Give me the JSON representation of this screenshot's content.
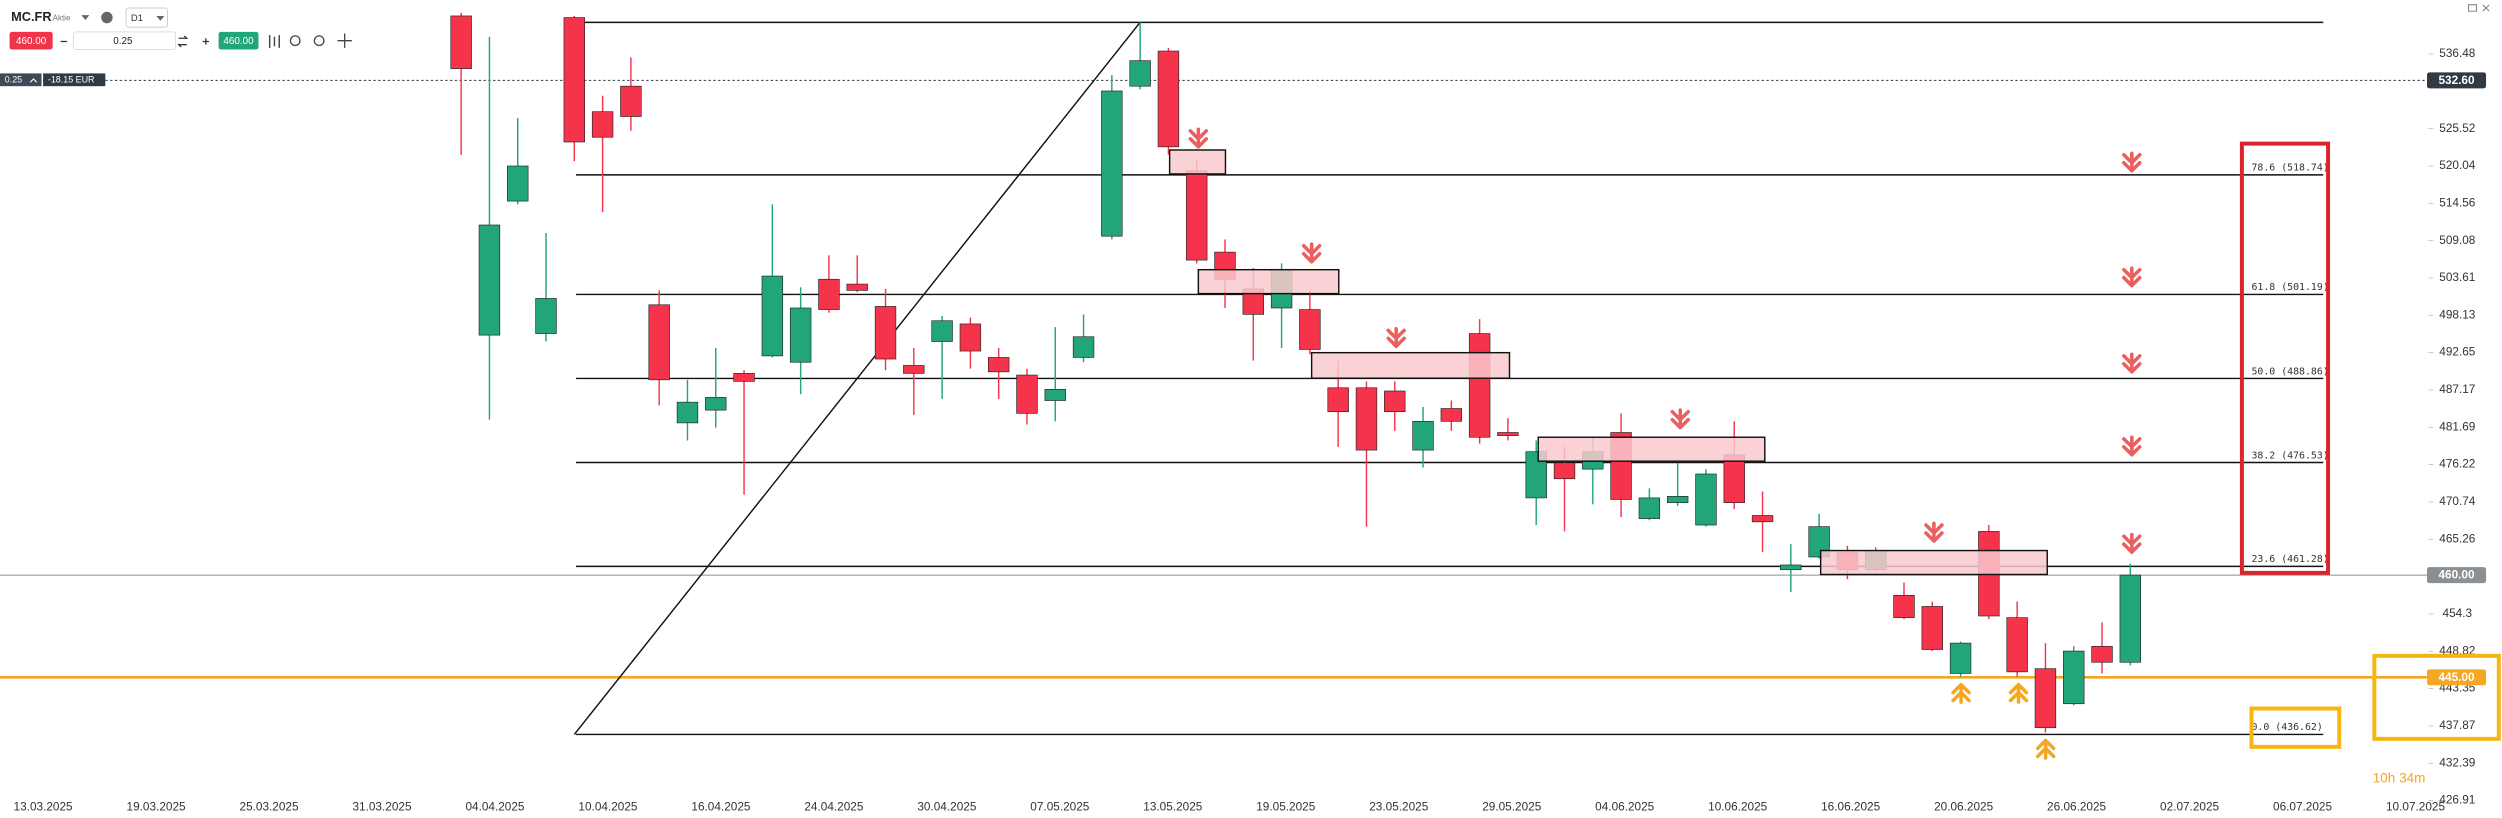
{
  "header": {
    "symbol": "MC.FR",
    "asset_type": "Aktie",
    "timeframe": "D1",
    "sell_price": "460.00",
    "quantity": "0.25",
    "buy_price": "460.00",
    "position_size": "0.25",
    "position_pl": "-18.15 EUR",
    "timer": "10h 34m"
  },
  "chart_data": {
    "type": "candlestick",
    "x_labels": [
      "13.03.2025",
      "19.03.2025",
      "25.03.2025",
      "31.03.2025",
      "04.04.2025",
      "10.04.2025",
      "16.04.2025",
      "24.04.2025",
      "30.04.2025",
      "07.05.2025",
      "13.05.2025",
      "19.05.2025",
      "23.05.2025",
      "29.05.2025",
      "04.06.2025",
      "10.06.2025",
      "16.06.2025",
      "20.06.2025",
      "26.06.2025",
      "02.07.2025",
      "06.07.2025",
      "10.07.2025"
    ],
    "candles": {
      "open": [
        542.06,
        495.22,
        514.89,
        495.45,
        541.82,
        528.01,
        531.75,
        499.67,
        482.34,
        484.21,
        489.6,
        492.17,
        491.24,
        503.42,
        502.71,
        499.43,
        490.77,
        494.28,
        496.86,
        491.94,
        489.36,
        485.62,
        491.94,
        509.74,
        531.75,
        536.91,
        519.34,
        507.4,
        502.01,
        499.2,
        498.97,
        487.49,
        487.49,
        487.02,
        478.35,
        484.45,
        495.45,
        480.93,
        471.33,
        476.48,
        475.55,
        480.93,
        468.29,
        470.63,
        467.35,
        477.65,
        468.75,
        460.79,
        462.66,
        463.37,
        460.79,
        457.04,
        455.4,
        445.57,
        466.41,
        453.76,
        446.27,
        441.12,
        449.55,
        447.21
      ],
      "high": [
        542.53,
        539.01,
        527.07,
        510.21,
        542.06,
        530.35,
        535.97,
        501.78,
        488.66,
        493.34,
        490.07,
        514.42,
        502.24,
        506.93,
        506.93,
        502.01,
        493.34,
        498.03,
        497.79,
        493.34,
        490.3,
        496.39,
        498.26,
        533.39,
        541.12,
        537.37,
        520.98,
        509.27,
        505.06,
        505.76,
        501.78,
        491.47,
        488.43,
        488.43,
        484.68,
        485.62,
        497.56,
        483.04,
        479.76,
        478.82,
        480.23,
        483.74,
        472.73,
        476.48,
        475.55,
        482.57,
        472.27,
        464.54,
        468.99,
        464.3,
        464.07,
        458.92,
        456.11,
        450.25,
        467.35,
        456.11,
        450.02,
        449.55,
        453.06,
        461.69
      ],
      "low": [
        521.68,
        482.81,
        514.42,
        494.28,
        520.75,
        513.25,
        525.2,
        484.91,
        479.76,
        481.64,
        471.8,
        491.94,
        486.55,
        498.5,
        501.54,
        490.07,
        483.51,
        485.85,
        490.3,
        485.85,
        482.1,
        482.57,
        491.24,
        509.27,
        531.28,
        521.68,
        505.76,
        499.2,
        491.47,
        493.34,
        492.41,
        478.82,
        467.11,
        481.17,
        475.78,
        481.17,
        479.29,
        479.76,
        467.35,
        466.41,
        470.39,
        468.52,
        468.05,
        470.16,
        467.11,
        469.69,
        463.37,
        457.51,
        462.43,
        459.39,
        460.56,
        453.53,
        448.85,
        445.1,
        453.53,
        445.1,
        436.9,
        440.89,
        445.57,
        446.74
      ],
      "close": [
        534.33,
        511.38,
        520.04,
        500.6,
        523.56,
        524.26,
        527.3,
        488.66,
        485.38,
        486.08,
        488.43,
        503.89,
        499.2,
        498.97,
        501.78,
        491.71,
        489.6,
        497.33,
        492.88,
        489.83,
        483.74,
        487.26,
        494.98,
        531.05,
        535.5,
        522.85,
        506.23,
        503.42,
        498.26,
        504.82,
        493.11,
        483.98,
        478.35,
        483.98,
        482.57,
        482.57,
        480.23,
        480.47,
        478.12,
        474.14,
        478.12,
        471.1,
        471.33,
        471.56,
        474.84,
        470.63,
        467.82,
        461.49,
        467.11,
        460.79,
        463.6,
        453.76,
        449.08,
        450.02,
        454.0,
        445.8,
        437.6,
        448.85,
        447.21,
        460.0
      ]
    },
    "colors": {
      "up": "#22a57a",
      "down": "#f5344b"
    },
    "ylim": [
      425.9,
      544.4
    ],
    "yticks": [
      536.48,
      525.52,
      520.04,
      514.56,
      509.08,
      503.61,
      498.13,
      492.65,
      487.17,
      481.69,
      476.22,
      470.74,
      465.26,
      454.3,
      448.82,
      443.35,
      437.87,
      432.39,
      426.91
    ],
    "fib_levels": [
      {
        "value": 541.12
      },
      {
        "value": 518.74,
        "label": "78.6 (518.74)"
      },
      {
        "value": 501.19,
        "label": "61.8 (501.19)"
      },
      {
        "value": 488.86,
        "label": "50.0 (488.86)"
      },
      {
        "value": 476.53,
        "label": "38.2 (476.53)"
      },
      {
        "value": 461.28,
        "label": "23.6 (461.28)"
      },
      {
        "value": 436.62,
        "label": "0.0 (436.62)"
      }
    ],
    "price_lines": [
      {
        "value": 532.6,
        "label": "532.60",
        "color": "#2f3a44",
        "style": "dotted"
      },
      {
        "value": 460.0,
        "label": "460.00",
        "color": "#8a8f94",
        "style": "solid"
      },
      {
        "value": 445.0,
        "label": "445.00",
        "color": "#f5a623",
        "style": "solid"
      }
    ]
  }
}
